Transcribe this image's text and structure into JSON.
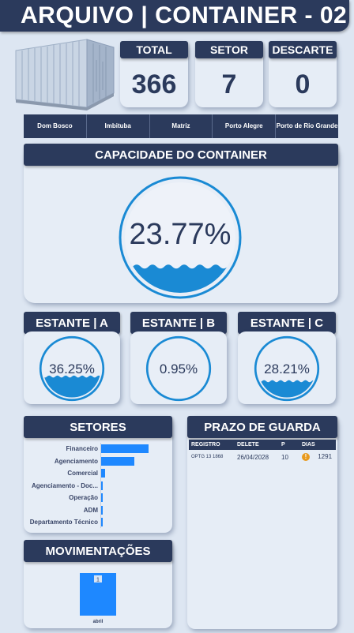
{
  "title": "ARQUIVO | CONTAINER - 02",
  "kpis": {
    "total": {
      "label": "TOTAL",
      "value": "366"
    },
    "setor": {
      "label": "SETOR",
      "value": "7"
    },
    "descarte": {
      "label": "DESCARTE",
      "value": "0"
    }
  },
  "locations": [
    "Dom Bosco",
    "Imbituba",
    "Matriz",
    "Porto Alegre",
    "Porto de Rio Grande"
  ],
  "capacity": {
    "label": "CAPACIDADE DO CONTAINER",
    "value": "23.77%",
    "fraction": 0.2377
  },
  "shelves": [
    {
      "label": "ESTANTE | A",
      "value": "36.25%",
      "fraction": 0.3625
    },
    {
      "label": "ESTANTE | B",
      "value": "0.95%",
      "fraction": 0.0095
    },
    {
      "label": "ESTANTE | C",
      "value": "28.21%",
      "fraction": 0.2821
    }
  ],
  "setores": {
    "label": "SETORES",
    "items": [
      {
        "name": "Financeiro",
        "value": 95
      },
      {
        "name": "Agenciamento",
        "value": 67
      },
      {
        "name": "Comercial",
        "value": 8
      },
      {
        "name": "Agenciamento - Doc...",
        "value": 2
      },
      {
        "name": "Operação",
        "value": 1
      },
      {
        "name": "ADM",
        "value": 1
      },
      {
        "name": "Departamento Técnico",
        "value": 1
      }
    ]
  },
  "prazo": {
    "label": "PRAZO DE GUARDA",
    "columns": [
      "REGISTRO",
      "DELETE",
      "P",
      "DIAS"
    ],
    "rows": [
      {
        "registro": "OPTG   13   1868",
        "delete": "26/04/2028",
        "p": "10",
        "dias": "1291",
        "warn_icon": "warning-icon"
      }
    ]
  },
  "movimentacoes": {
    "label": "MOVIMENTAÇÕES",
    "chart_data": {
      "type": "bar",
      "categories": [
        "abril"
      ],
      "values": [
        1
      ]
    }
  },
  "colors": {
    "navy": "#2b3a5c",
    "accent": "#1e88ff",
    "gauge_ring": "#1a8ad4",
    "warning": "#e89a1e"
  }
}
